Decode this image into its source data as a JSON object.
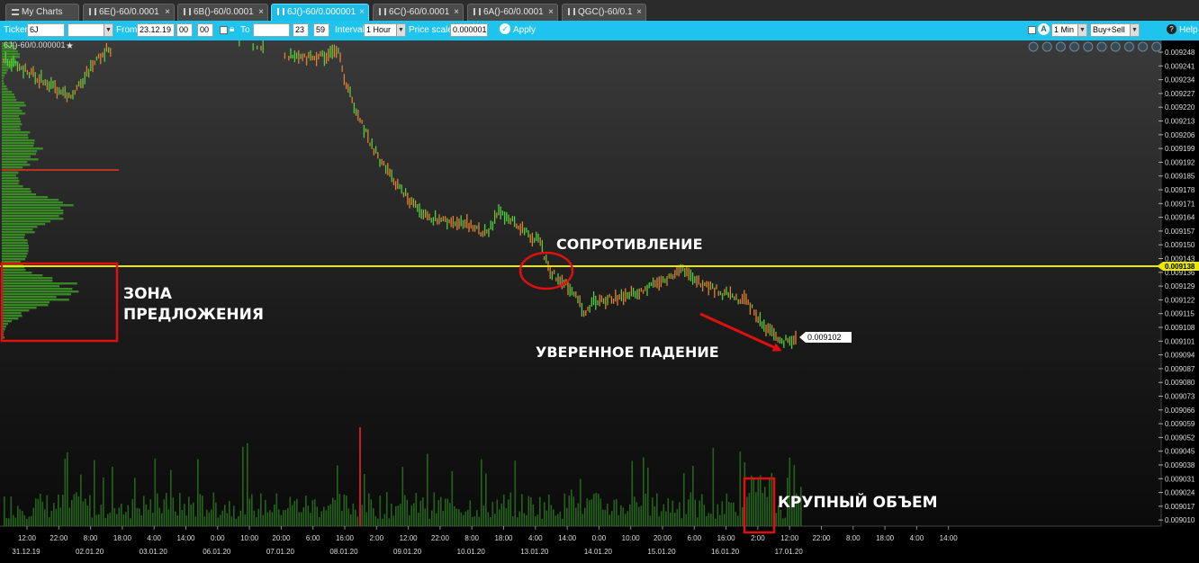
{
  "tabs": [
    {
      "label": "My Charts",
      "icon": "list-icon",
      "close": ""
    },
    {
      "label": "6E()-60/0.0001",
      "icon": "bar-chart-icon",
      "close": "×"
    },
    {
      "label": "6B()-60/0.0001",
      "icon": "bar-chart-icon",
      "close": "×"
    },
    {
      "label": "6J()-60/0.000001",
      "icon": "bar-chart-icon",
      "close": "×"
    },
    {
      "label": "6C()-60/0.0001",
      "icon": "bar-chart-icon",
      "close": "×"
    },
    {
      "label": "6A()-60/0.0001",
      "icon": "bar-chart-icon",
      "close": "×"
    },
    {
      "label": "QGC()-60/0.1",
      "icon": "bar-chart-icon",
      "close": "×"
    }
  ],
  "toolbar": {
    "ticker_label": "Ticker",
    "ticker_value": "6J",
    "ticker_select_value": "",
    "from_label": "From",
    "from_date": "23.12.19",
    "from_hour": "00",
    "from_min": "00",
    "to_label": "To",
    "to_date": "",
    "to_hour": "23",
    "to_min": "59",
    "interval_label": "Interval",
    "interval_value": "1 Hour",
    "price_scale_label": "Price scale",
    "price_scale_value": "0.000001",
    "apply_label": "Apply",
    "timeframe_value": "1 Min",
    "mode_value": "Buy+Sell",
    "help_label": "Help"
  },
  "chart": {
    "instrument_label": "6J()-60/0.000001",
    "price_ticks": [
      "0.009248",
      "0.009241",
      "0.009234",
      "0.009227",
      "0.009220",
      "0.009213",
      "0.009206",
      "0.009199",
      "0.009192",
      "0.009185",
      "0.009178",
      "0.009171",
      "0.009164",
      "0.009157",
      "0.009150",
      "0.009143",
      "0.009136",
      "0.009129",
      "0.009122",
      "0.009115",
      "0.009108",
      "0.009101",
      "0.009094",
      "0.009087",
      "0.009080",
      "0.009073",
      "0.009066",
      "0.009059",
      "0.009052",
      "0.009045",
      "0.009038",
      "0.009031",
      "0.009024",
      "0.009017",
      "0.009010"
    ],
    "time_ticks": [
      "12:00",
      "22:00",
      "8:00",
      "18:00",
      "4:00",
      "14:00",
      "0:00",
      "10:00",
      "20:00",
      "6:00",
      "16:00",
      "2:00",
      "12:00",
      "22:00",
      "8:00",
      "18:00",
      "4:00",
      "14:00",
      "0:00",
      "10:00",
      "20:00",
      "6:00",
      "16:00",
      "2:00",
      "12:00",
      "22:00",
      "8:00",
      "18:00",
      "4:00",
      "14:00"
    ],
    "date_ticks": [
      "31.12.19",
      "02.01.20",
      "03.01.20",
      "06.01.20",
      "07.01.20",
      "08.01.20",
      "09.01.20",
      "10.01.20",
      "13.01.20",
      "14.01.20",
      "15.01.20",
      "16.01.20",
      "17.01.20"
    ],
    "level_label": "0.009138",
    "last_price_label": "0.009102",
    "annotations": {
      "resistance": "СОПРОТИВЛЕНИЕ",
      "supply_zone_line1": "ЗОНА",
      "supply_zone_line2": "ПРЕДЛОЖЕНИЯ",
      "confident_fall": "УВЕРЕННОЕ ПАДЕНИЕ",
      "large_volume": "КРУПНЫЙ ОБЪЕМ"
    },
    "colors": {
      "level_line": "#e8e800",
      "annotation_box": "#e01010",
      "up_candle": "#4fd03c",
      "down_candle": "#e08030",
      "volume": "#2a7a1e",
      "profile": "#3c9a26"
    }
  }
}
